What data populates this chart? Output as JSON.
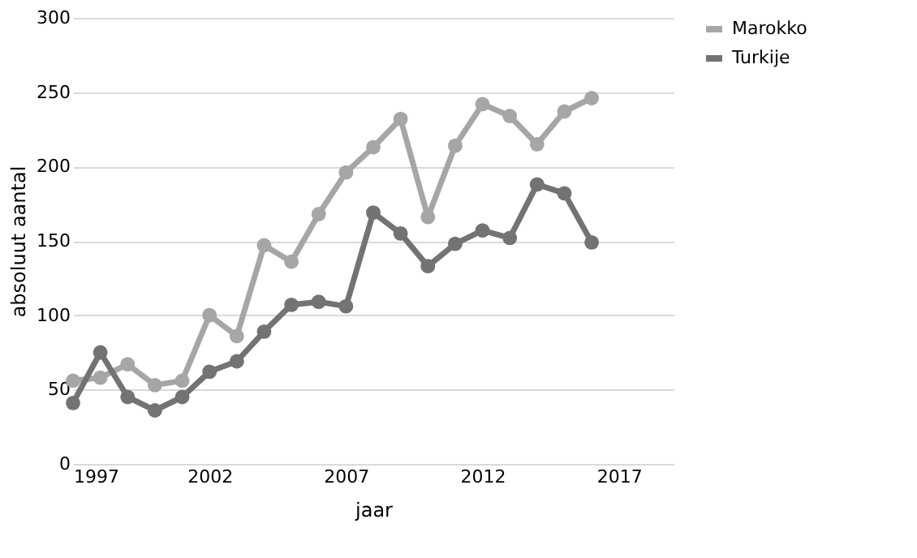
{
  "chart_data": {
    "type": "line",
    "xlabel": "jaar",
    "ylabel": "absoluut aantal",
    "x": [
      1997,
      1998,
      1999,
      2000,
      2001,
      2002,
      2003,
      2004,
      2005,
      2006,
      2007,
      2008,
      2009,
      2010,
      2011,
      2012,
      2013,
      2014,
      2015,
      2016
    ],
    "series": [
      {
        "name": "Marokko",
        "color": "#a6a6a6",
        "values": [
          56,
          58,
          67,
          53,
          56,
          100,
          86,
          147,
          136,
          168,
          196,
          213,
          232,
          166,
          214,
          242,
          234,
          215,
          237,
          246
        ]
      },
      {
        "name": "Turkije",
        "color": "#737373",
        "values": [
          41,
          75,
          45,
          36,
          45,
          62,
          69,
          89,
          107,
          109,
          106,
          169,
          155,
          133,
          148,
          157,
          152,
          188,
          182,
          149
        ]
      }
    ],
    "xlim": [
      1997,
      2019
    ],
    "xticks": [
      1997,
      2002,
      2007,
      2012,
      2017
    ],
    "ylim": [
      0,
      300
    ],
    "yticks": [
      0,
      50,
      100,
      150,
      200,
      250,
      300
    ],
    "grid": "y",
    "legend": "right",
    "marker": "circle",
    "line_style": "solid"
  }
}
